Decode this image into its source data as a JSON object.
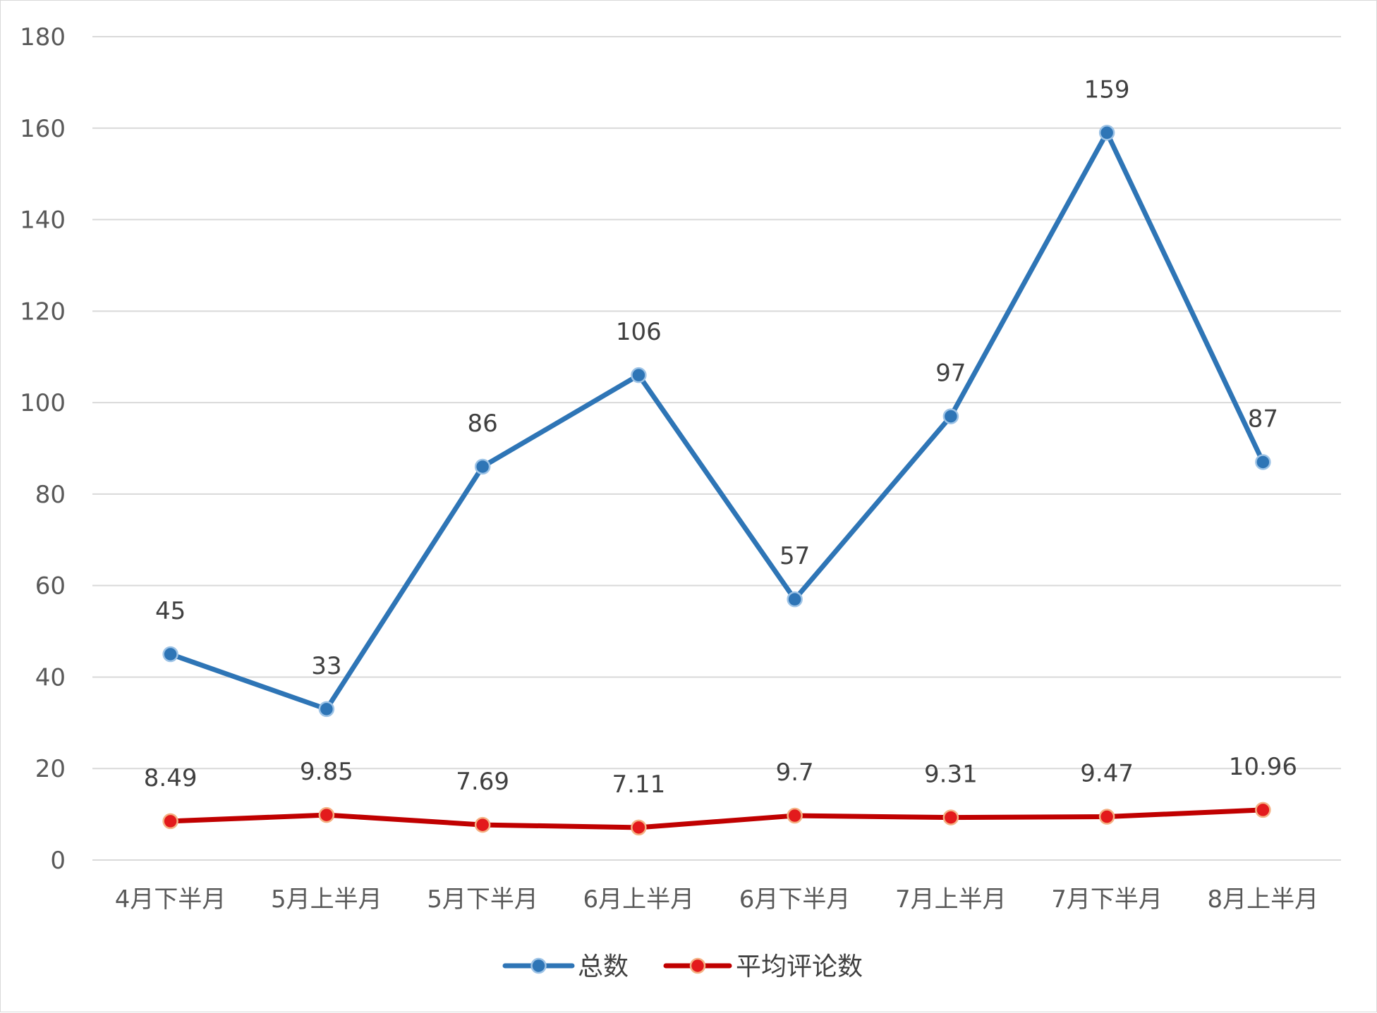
{
  "chart_data": {
    "type": "line",
    "title": "",
    "xlabel": "",
    "ylabel": "",
    "categories": [
      "4月下半月",
      "5月上半月",
      "5月下半月",
      "6月上半月",
      "6月下半月",
      "7月上半月",
      "7月下半月",
      "8月上半月"
    ],
    "ylim": [
      0,
      180
    ],
    "yticks": [
      0,
      20,
      40,
      60,
      80,
      100,
      120,
      140,
      160,
      180
    ],
    "grid": true,
    "legend_position": "bottom",
    "series": [
      {
        "name": "总数",
        "color": "#2E75B6",
        "values": [
          45,
          33,
          86,
          106,
          57,
          97,
          159,
          87
        ],
        "labels": [
          "45",
          "33",
          "86",
          "106",
          "57",
          "97",
          "159",
          "87"
        ]
      },
      {
        "name": "平均评论数",
        "color": "#C00000",
        "marker_fill": "#E31A1C",
        "marker_stroke": "#F4B183",
        "values": [
          8.49,
          9.85,
          7.69,
          7.11,
          9.7,
          9.31,
          9.47,
          10.96
        ],
        "labels": [
          "8.49",
          "9.85",
          "7.69",
          "7.11",
          "9.7",
          "9.31",
          "9.47",
          "10.96"
        ]
      }
    ]
  }
}
